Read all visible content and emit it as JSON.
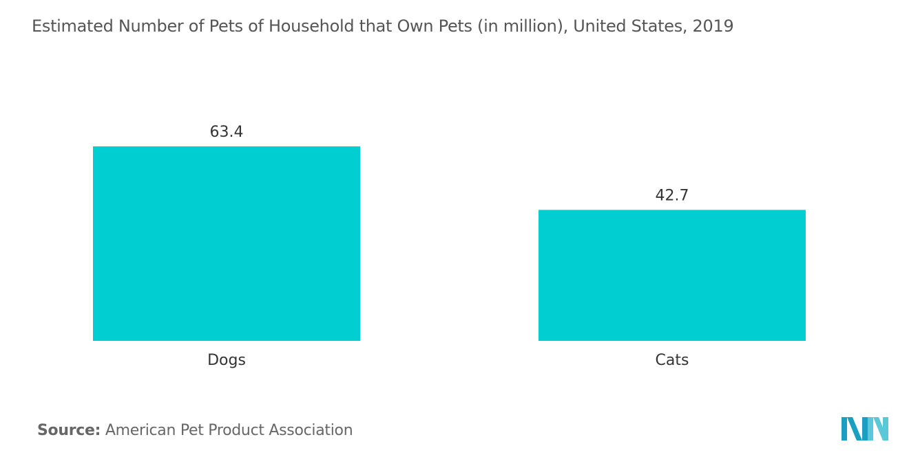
{
  "chart_data": {
    "type": "bar",
    "title": "Estimated Number of Pets of Household that Own Pets (in million), United States, 2019",
    "categories": [
      "Dogs",
      "Cats"
    ],
    "values": [
      63.4,
      42.7
    ],
    "value_labels": [
      "63.4",
      "42.7"
    ],
    "xlabel": "",
    "ylabel": "",
    "ylim": [
      0,
      63.4
    ],
    "grid": false,
    "legend": "none",
    "bar_color": "#00CED1"
  },
  "footer": {
    "source_label": "Source:",
    "source_text": "American Pet Product Association"
  },
  "logo": {
    "icon": "mordor-intelligence-logo-icon",
    "colors": [
      "#1B9FC1",
      "#5AC8D8"
    ]
  }
}
